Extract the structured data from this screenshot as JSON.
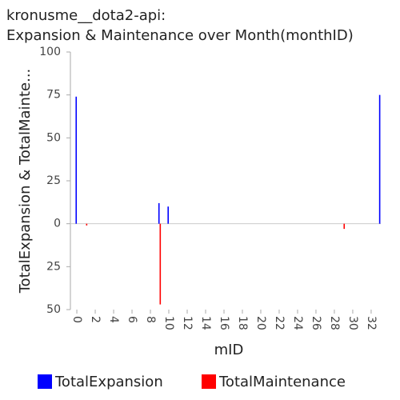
{
  "chart_data": {
    "type": "bar",
    "title": [
      "kronusme__dota2-api:",
      "Expansion & Maintenance over Month(monthID)"
    ],
    "x_label": "mID",
    "y_label": "TotalExpansion & TotalMainte...",
    "x": [
      0,
      1,
      9,
      10,
      29,
      33
    ],
    "series": [
      {
        "name": "TotalExpansion",
        "color": "#0000ff",
        "values": [
          74,
          null,
          12,
          10,
          null,
          75
        ]
      },
      {
        "name": "TotalMaintenance",
        "color": "#ff0000",
        "values": [
          null,
          -1,
          -47,
          null,
          -3,
          null
        ]
      }
    ],
    "xlim": [
      -0.7,
      33.05
    ],
    "xticks": [
      0,
      2,
      4,
      6,
      8,
      10,
      12,
      14,
      16,
      18,
      20,
      22,
      24,
      26,
      28,
      30,
      32
    ],
    "ylim": [
      -50,
      100
    ],
    "yticks": [
      100,
      75,
      50,
      25,
      0,
      {
        "value": -25,
        "label": "25"
      },
      {
        "value": -50,
        "label": "50"
      }
    ]
  }
}
